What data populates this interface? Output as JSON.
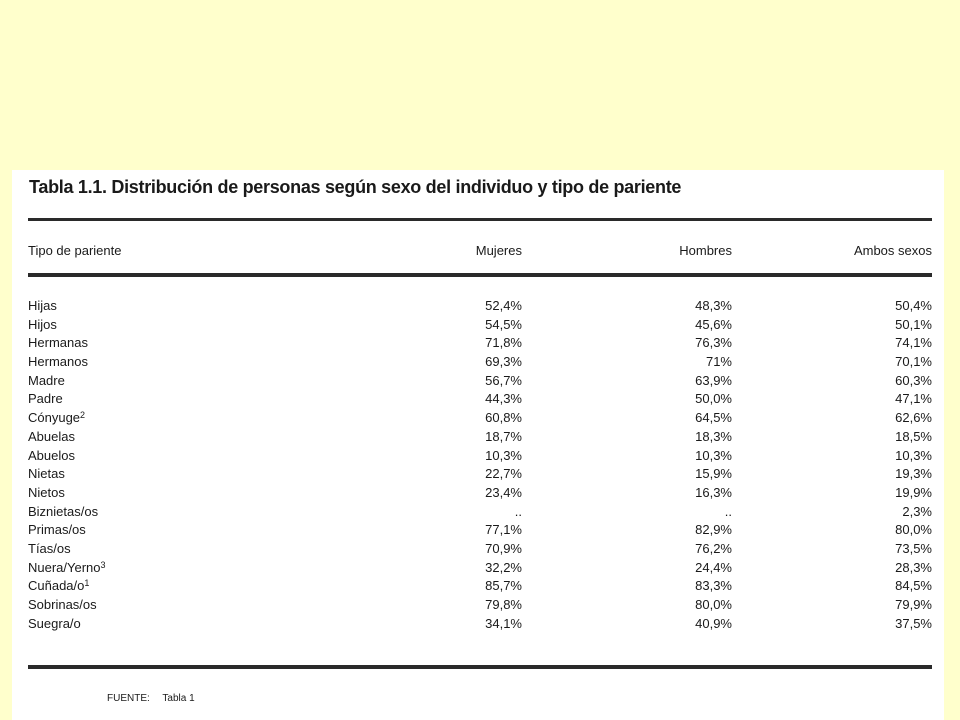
{
  "table": {
    "title": "Tabla 1.1. Distribución de personas según sexo del individuo y tipo de pariente",
    "headers": [
      "Tipo de pariente",
      "Mujeres",
      "Hombres",
      "Ambos sexos"
    ],
    "rows": [
      {
        "label": "Hijas",
        "sup": "",
        "mujeres": "52,4%",
        "hombres": "48,3%",
        "ambos": "50,4%"
      },
      {
        "label": "Hijos",
        "sup": "",
        "mujeres": "54,5%",
        "hombres": "45,6%",
        "ambos": "50,1%"
      },
      {
        "label": "Hermanas",
        "sup": "",
        "mujeres": "71,8%",
        "hombres": "76,3%",
        "ambos": "74,1%"
      },
      {
        "label": "Hermanos",
        "sup": "",
        "mujeres": "69,3%",
        "hombres": "71%",
        "ambos": "70,1%"
      },
      {
        "label": "Madre",
        "sup": "",
        "mujeres": "56,7%",
        "hombres": "63,9%",
        "ambos": "60,3%"
      },
      {
        "label": "Padre",
        "sup": "",
        "mujeres": "44,3%",
        "hombres": "50,0%",
        "ambos": "47,1%"
      },
      {
        "label": "Cónyuge",
        "sup": "2",
        "mujeres": "60,8%",
        "hombres": "64,5%",
        "ambos": "62,6%"
      },
      {
        "label": "Abuelas",
        "sup": "",
        "mujeres": "18,7%",
        "hombres": "18,3%",
        "ambos": "18,5%"
      },
      {
        "label": "Abuelos",
        "sup": "",
        "mujeres": "10,3%",
        "hombres": "10,3%",
        "ambos": "10,3%"
      },
      {
        "label": "Nietas",
        "sup": "",
        "mujeres": "22,7%",
        "hombres": "15,9%",
        "ambos": "19,3%"
      },
      {
        "label": "Nietos",
        "sup": "",
        "mujeres": "23,4%",
        "hombres": "16,3%",
        "ambos": "19,9%"
      },
      {
        "label": "Biznietas/os",
        "sup": "",
        "mujeres": "..",
        "hombres": "..",
        "ambos": "2,3%"
      },
      {
        "label": "Primas/os",
        "sup": "",
        "mujeres": "77,1%",
        "hombres": "82,9%",
        "ambos": "80,0%"
      },
      {
        "label": "Tías/os",
        "sup": "",
        "mujeres": "70,9%",
        "hombres": "76,2%",
        "ambos": "73,5%"
      },
      {
        "label": "Nuera/Yerno",
        "sup": "3",
        "mujeres": "32,2%",
        "hombres": "24,4%",
        "ambos": "28,3%"
      },
      {
        "label": "Cuñada/o",
        "sup": "1",
        "mujeres": "85,7%",
        "hombres": "83,3%",
        "ambos": "84,5%"
      },
      {
        "label": "Sobrinas/os",
        "sup": "",
        "mujeres": "79,8%",
        "hombres": "80,0%",
        "ambos": "79,9%"
      },
      {
        "label": "Suegra/o",
        "sup": "",
        "mujeres": "34,1%",
        "hombres": "40,9%",
        "ambos": "37,5%"
      }
    ],
    "source_label": "FUENTE:",
    "source_value": "Tabla 1"
  }
}
